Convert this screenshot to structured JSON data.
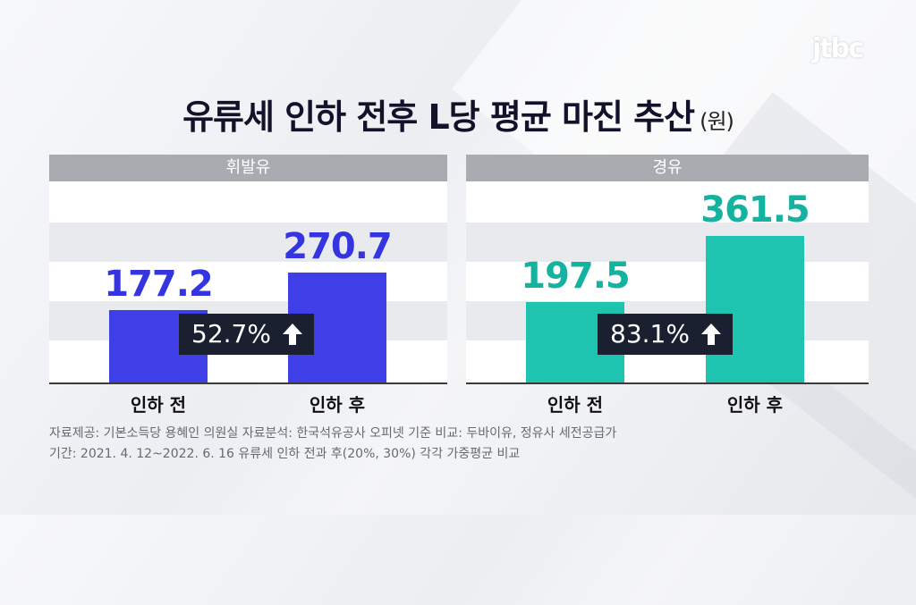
{
  "brand": "jtbc",
  "title": "유류세 인하 전후 L당 평균 마진 추산",
  "unit": "(원)",
  "chart_data": [
    {
      "type": "bar",
      "title": "휘발유",
      "categories": [
        "인하 전",
        "인하 후"
      ],
      "values": [
        177.2,
        270.7
      ],
      "value_labels": [
        "177.2",
        "270.7"
      ],
      "change_label": "52.7%",
      "color": "#3f3fe8",
      "ylim": [
        0,
        400
      ]
    },
    {
      "type": "bar",
      "title": "경유",
      "categories": [
        "인하 전",
        "인하 후"
      ],
      "values": [
        197.5,
        361.5
      ],
      "value_labels": [
        "197.5",
        "361.5"
      ],
      "change_label": "83.1%",
      "color": "#1ec4b0",
      "ylim": [
        0,
        400
      ]
    }
  ],
  "notes": [
    "자료제공: 기본소득당 용혜인 의원실   자료분석: 한국석유공사 오피넷 기준   비교: 두바이유, 정유사 세전공급가",
    "기간: 2021. 4. 12~2022. 6. 16   유류세 인하 전과 후(20%, 30%) 각각 가중평균 비교"
  ]
}
